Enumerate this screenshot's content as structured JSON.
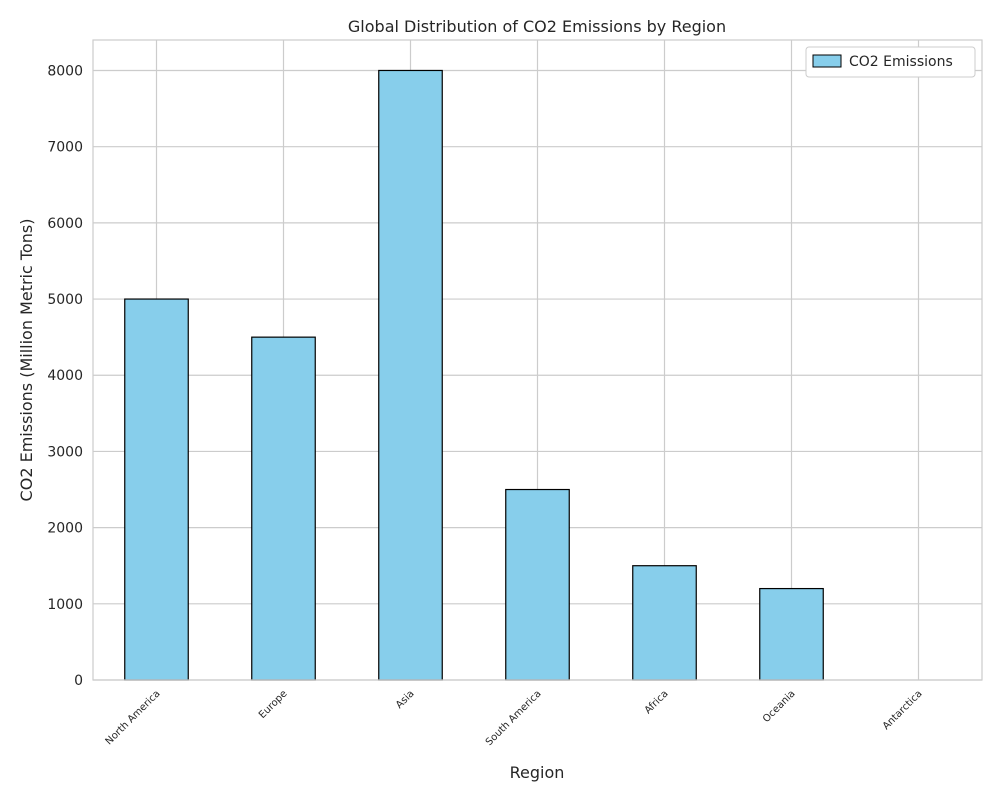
{
  "chart_data": {
    "type": "bar",
    "title": "Global Distribution of CO2 Emissions by Region",
    "xlabel": "Region",
    "ylabel": "CO2 Emissions (Million Metric Tons)",
    "categories": [
      "North America",
      "Europe",
      "Asia",
      "South America",
      "Africa",
      "Oceania",
      "Antarctica"
    ],
    "series": [
      {
        "name": "CO2 Emissions",
        "values": [
          5000,
          4500,
          8000,
          2500,
          1500,
          1200,
          0
        ]
      }
    ],
    "ylim": [
      0,
      8400
    ],
    "yticks": [
      0,
      1000,
      2000,
      3000,
      4000,
      5000,
      6000,
      7000,
      8000
    ],
    "grid": true,
    "legend_position": "top-right",
    "colors": {
      "bar_fill": "#87ceeb",
      "bar_edge": "#000000",
      "grid": "#cccccc",
      "axes_edge": "#cccccc"
    }
  }
}
